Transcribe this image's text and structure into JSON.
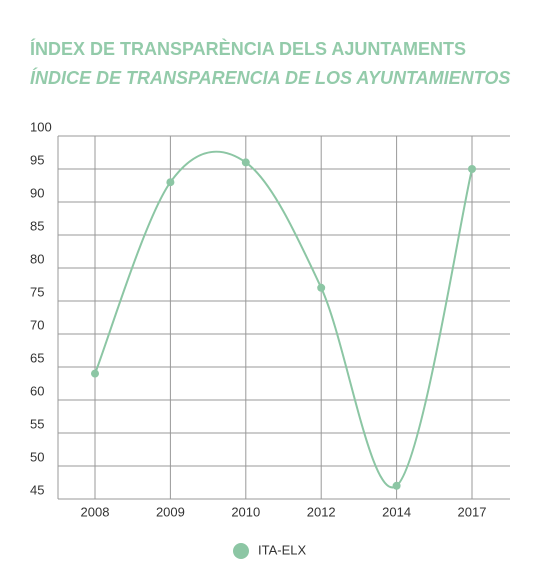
{
  "chart_data": {
    "type": "line",
    "title": "ÍNDEX DE TRANSPARÈNCIA DELS AJUNTAMENTS",
    "subtitle": "ÍNDICE DE TRANSPARENCIA DE LOS AYUNTAMIENTOS",
    "categories": [
      "2008",
      "2009",
      "2010",
      "2012",
      "2014",
      "2017"
    ],
    "series": [
      {
        "name": "ITA-ELX",
        "color": "#8cc6a4",
        "values": [
          64,
          93,
          96,
          77,
          47,
          95
        ]
      }
    ],
    "ylim": [
      45,
      100
    ],
    "yticks": [
      45,
      50,
      55,
      60,
      65,
      70,
      75,
      80,
      85,
      90,
      95,
      100
    ],
    "grid": true,
    "legend": "bottom"
  }
}
